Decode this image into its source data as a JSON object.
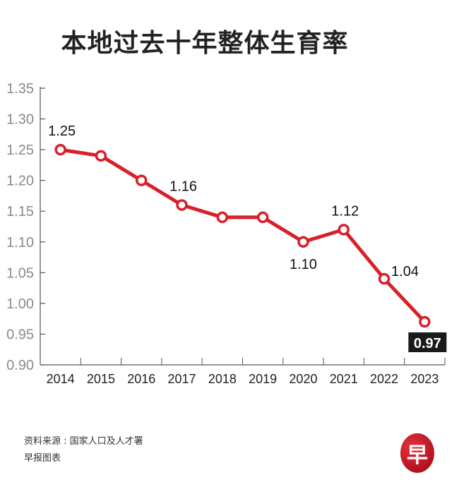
{
  "title": "本地过去十年整体生育率",
  "source": {
    "line1": "资料来源 : 国家人口及人才署",
    "line2": "早报图表"
  },
  "logo": {
    "glyph": "早",
    "color": "#c4161f"
  },
  "colors": {
    "line": "#d8202b",
    "axis": "#555555",
    "highlight_bg": "#1a1a1a"
  },
  "chart_data": {
    "type": "line",
    "title": "本地过去十年整体生育率",
    "xlabel": "",
    "ylabel": "",
    "categories": [
      "2014",
      "2015",
      "2016",
      "2017",
      "2018",
      "2019",
      "2020",
      "2021",
      "2022",
      "2023"
    ],
    "series": [
      {
        "name": "整体生育率",
        "values": [
          1.25,
          1.24,
          1.2,
          1.16,
          1.14,
          1.14,
          1.1,
          1.12,
          1.04,
          0.97
        ]
      }
    ],
    "ylim": [
      0.9,
      1.35
    ],
    "yticks": [
      "0.90",
      "0.95",
      "1.00",
      "1.05",
      "1.10",
      "1.15",
      "1.20",
      "1.25",
      "1.30",
      "1.35"
    ],
    "grid": false,
    "legend": "none",
    "annotations": [
      {
        "year": "2014",
        "text": "1.25",
        "position": "above"
      },
      {
        "year": "2017",
        "text": "1.16",
        "position": "above"
      },
      {
        "year": "2020",
        "text": "1.10",
        "position": "below"
      },
      {
        "year": "2021",
        "text": "1.12",
        "position": "above"
      },
      {
        "year": "2022",
        "text": "1.04",
        "position": "right"
      },
      {
        "year": "2023",
        "text": "0.97",
        "position": "below",
        "highlight": true
      }
    ]
  }
}
